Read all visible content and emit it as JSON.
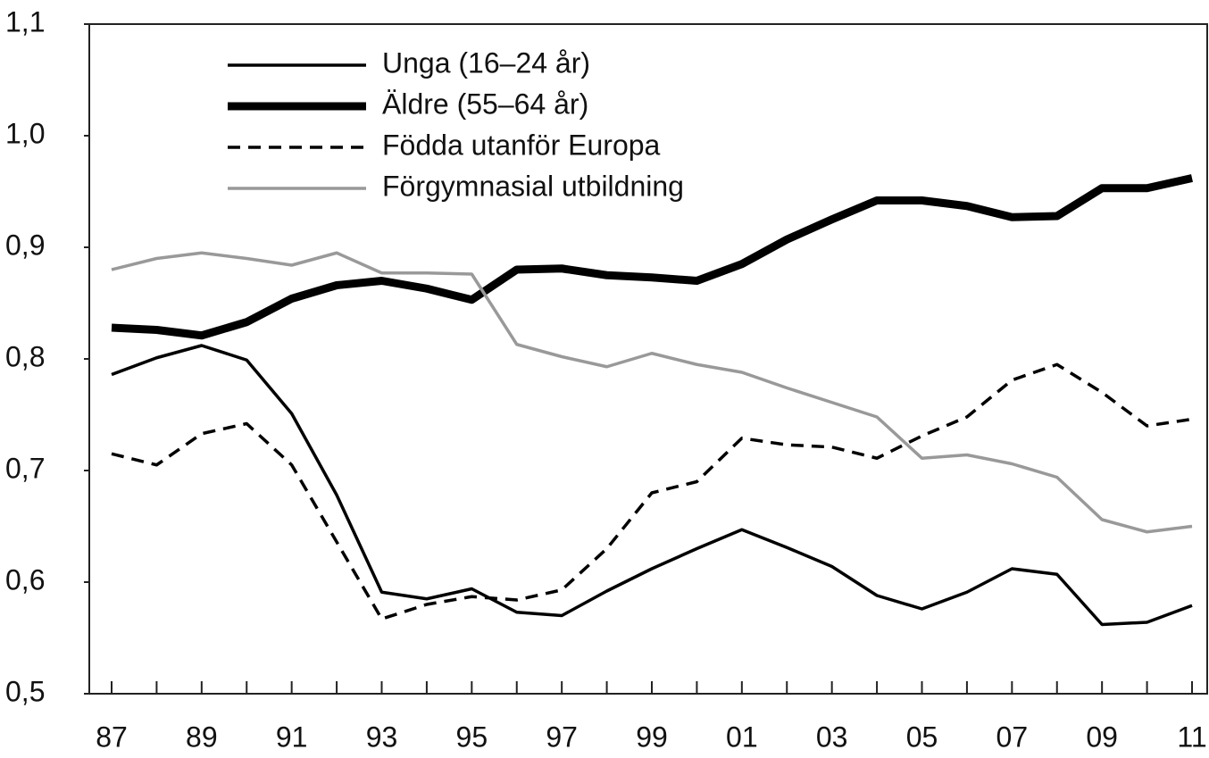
{
  "chart_data": {
    "type": "line",
    "categories": [
      "87",
      null,
      "89",
      null,
      "91",
      null,
      "93",
      null,
      "95",
      null,
      "97",
      null,
      "99",
      null,
      "01",
      null,
      "03",
      null,
      "05",
      null,
      "07",
      null,
      "09",
      null,
      "11"
    ],
    "ylim": [
      0.5,
      1.1
    ],
    "yticks": [
      {
        "value": 0.5,
        "label": "0,5"
      },
      {
        "value": 0.6,
        "label": "0,6"
      },
      {
        "value": 0.7,
        "label": "0,7"
      },
      {
        "value": 0.8,
        "label": "0,8"
      },
      {
        "value": 0.9,
        "label": "0,9"
      },
      {
        "value": 1.0,
        "label": "1,0"
      },
      {
        "value": 1.1,
        "label": "1,1"
      }
    ],
    "grid": false,
    "legend": "top-left",
    "series": [
      {
        "name": "Unga (16–24 år)",
        "color": "#000000",
        "width": 3.5,
        "dash": "solid",
        "values": [
          0.786,
          0.801,
          0.812,
          0.799,
          0.751,
          0.678,
          0.591,
          0.585,
          0.594,
          0.573,
          0.57,
          0.592,
          0.612,
          0.63,
          0.647,
          0.631,
          0.614,
          0.588,
          0.576,
          0.591,
          0.612,
          0.607,
          0.562,
          0.564,
          0.579
        ]
      },
      {
        "name": "Äldre (55–64 år)",
        "color": "#000000",
        "width": 9,
        "dash": "solid",
        "values": [
          0.828,
          0.826,
          0.821,
          0.833,
          0.854,
          0.866,
          0.87,
          0.863,
          0.853,
          0.88,
          0.881,
          0.875,
          0.873,
          0.87,
          0.885,
          0.907,
          0.925,
          0.942,
          0.942,
          0.937,
          0.927,
          0.928,
          0.953,
          0.953,
          0.962
        ]
      },
      {
        "name": "Födda utanför Europa",
        "color": "#000000",
        "width": 3.5,
        "dash": "dashed",
        "values": [
          0.715,
          0.705,
          0.733,
          0.742,
          0.705,
          0.636,
          0.567,
          0.58,
          0.587,
          0.584,
          0.593,
          0.63,
          0.68,
          0.69,
          0.729,
          0.723,
          0.721,
          0.711,
          0.731,
          0.748,
          0.781,
          0.795,
          0.77,
          0.74,
          0.746
        ]
      },
      {
        "name": "Förgymnasial utbildning",
        "color": "#999999",
        "width": 3.5,
        "dash": "solid",
        "values": [
          0.88,
          0.89,
          0.895,
          0.89,
          0.884,
          0.895,
          0.877,
          0.877,
          0.876,
          0.813,
          0.802,
          0.793,
          0.805,
          0.795,
          0.788,
          0.774,
          0.761,
          0.748,
          0.711,
          0.714,
          0.706,
          0.694,
          0.656,
          0.645,
          0.65
        ]
      }
    ]
  }
}
